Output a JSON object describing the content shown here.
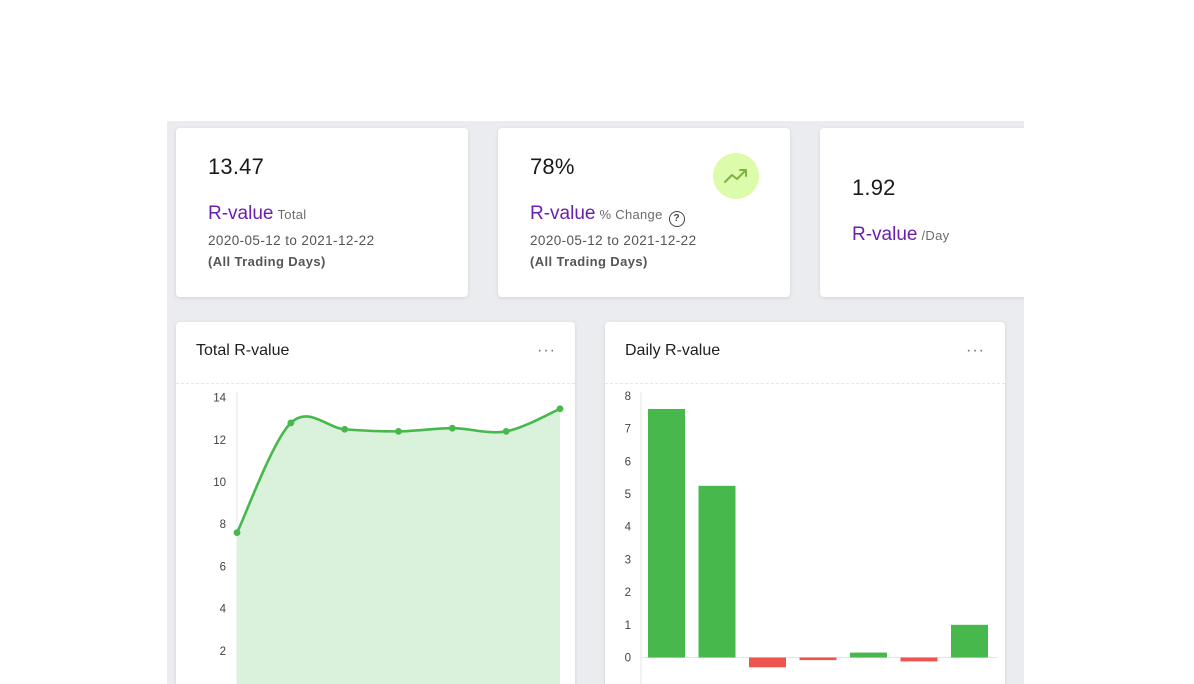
{
  "stats": [
    {
      "value": "13.47",
      "label": "R-value",
      "sublabel": "Total",
      "range": "2020-05-12 to 2021-12-22",
      "note": "(All Trading Days)"
    },
    {
      "value": "78%",
      "label": "R-value",
      "sublabel": "% Change",
      "range": "2020-05-12 to 2021-12-22",
      "note": "(All Trading Days)",
      "help_icon": "?",
      "badge_icon": "trending-up-icon"
    },
    {
      "value": "1.92",
      "label": "R-value",
      "sublabel": "/Day"
    }
  ],
  "charts": {
    "total": {
      "title": "Total R-value",
      "menu": "···"
    },
    "daily": {
      "title": "Daily R-value",
      "menu": "···"
    }
  },
  "colors": {
    "accent": "#6a1fb3",
    "positive": "#46b84c",
    "negative": "#ef5350",
    "area": "#daf1dc",
    "badge": "#dcfcac"
  },
  "chart_data": [
    {
      "type": "area",
      "title": "Total R-value",
      "y_ticks": [
        2,
        4,
        6,
        8,
        10,
        12,
        14
      ],
      "values": [
        7.6,
        12.8,
        12.5,
        12.4,
        12.55,
        12.4,
        13.47
      ]
    },
    {
      "type": "bar",
      "title": "Daily R-value",
      "y_ticks": [
        0,
        1,
        2,
        3,
        4,
        5,
        6,
        7,
        8
      ],
      "values": [
        7.6,
        5.25,
        -0.3,
        -0.08,
        0.15,
        -0.12,
        1.0
      ]
    }
  ]
}
